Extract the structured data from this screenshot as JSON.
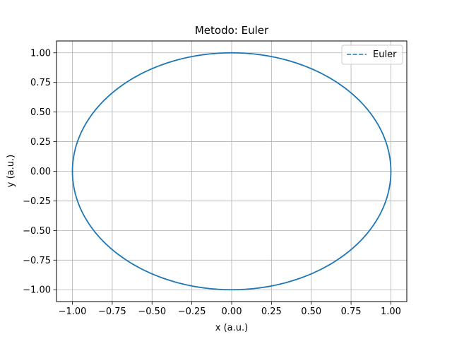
{
  "chart_data": {
    "type": "line",
    "title": "Metodo: Euler",
    "xlabel": "x (a.u.)",
    "ylabel": "y (a.u.)",
    "xlim": [
      -1.1,
      1.1
    ],
    "ylim": [
      -1.1,
      1.1
    ],
    "xticks": [
      -1.0,
      -0.75,
      -0.5,
      -0.25,
      0.0,
      0.25,
      0.5,
      0.75,
      1.0
    ],
    "yticks": [
      -1.0,
      -0.75,
      -0.5,
      -0.25,
      0.0,
      0.25,
      0.5,
      0.75,
      1.0
    ],
    "xtick_labels": [
      "−1.00",
      "−0.75",
      "−0.50",
      "−0.25",
      "0.00",
      "0.25",
      "0.50",
      "0.75",
      "1.00"
    ],
    "ytick_labels": [
      "−1.00",
      "−0.75",
      "−0.50",
      "−0.25",
      "0.00",
      "0.25",
      "0.50",
      "0.75",
      "1.00"
    ],
    "grid": true,
    "legend_position": "top-right",
    "series": [
      {
        "name": "Euler",
        "style": "dashed",
        "color": "#1f77b4",
        "shape": "circle",
        "center": [
          0.0,
          0.0
        ],
        "radius": 1.0
      }
    ]
  }
}
